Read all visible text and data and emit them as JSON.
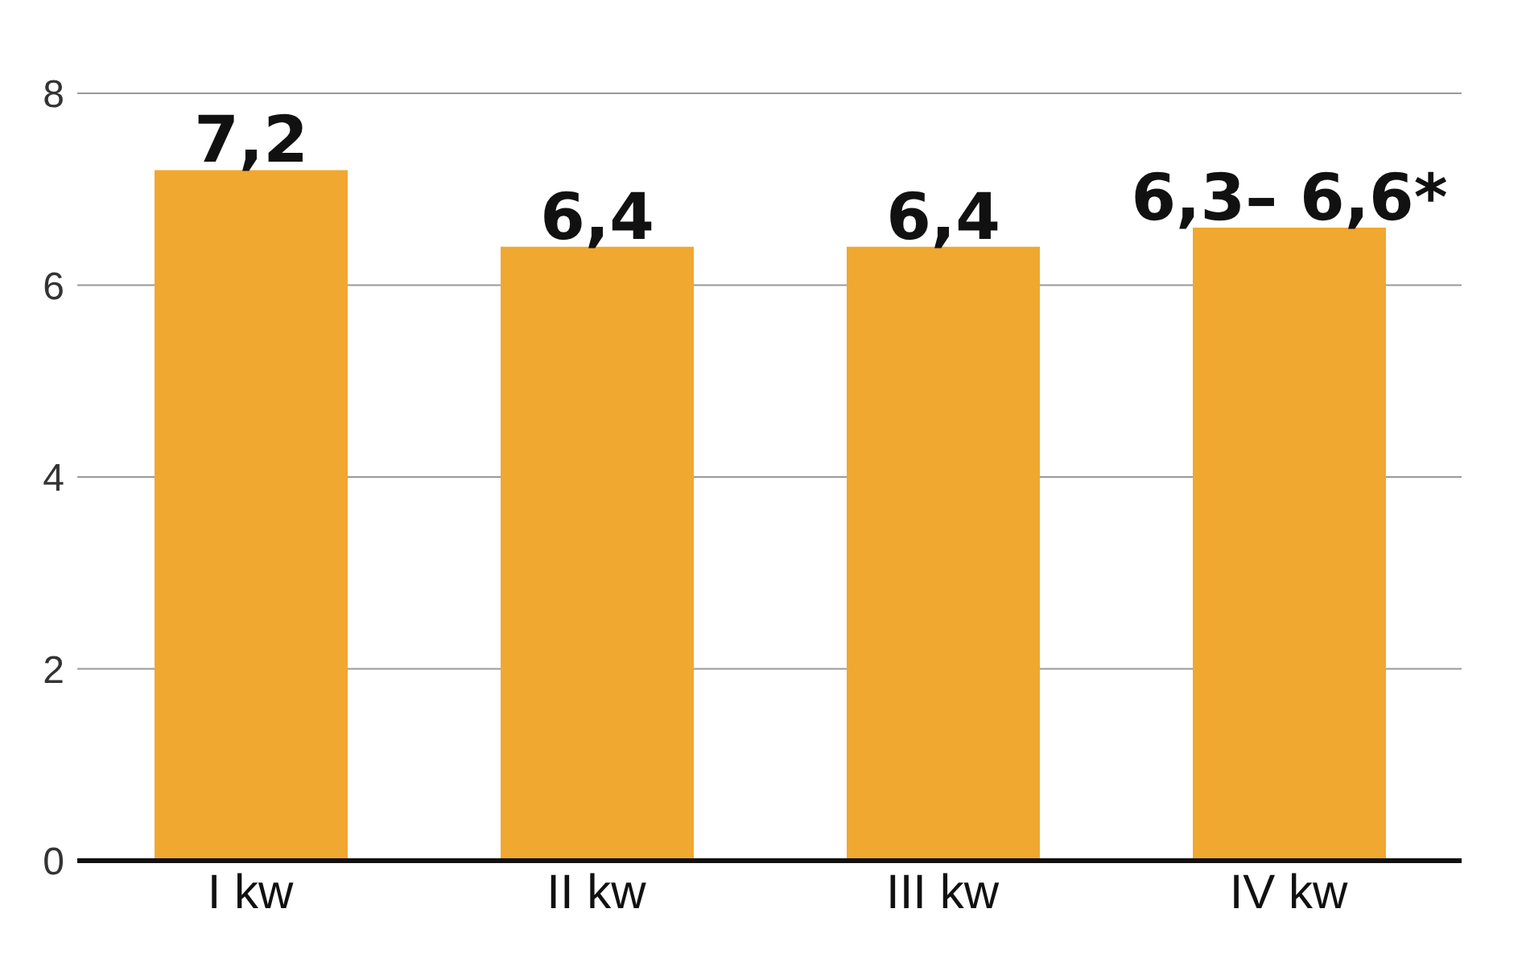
{
  "chart_data": {
    "type": "bar",
    "categories": [
      "I kw",
      "II kw",
      "III kw",
      "IV kw"
    ],
    "values": [
      7.2,
      6.4,
      6.4,
      6.6
    ],
    "value_labels": [
      "7,2",
      "6,4",
      "6,4",
      "6,3– 6,6*"
    ],
    "color": "#f0a830",
    "ylim": [
      0,
      8
    ],
    "yticks": [
      0,
      2,
      4,
      6,
      8
    ],
    "grid": "y"
  }
}
